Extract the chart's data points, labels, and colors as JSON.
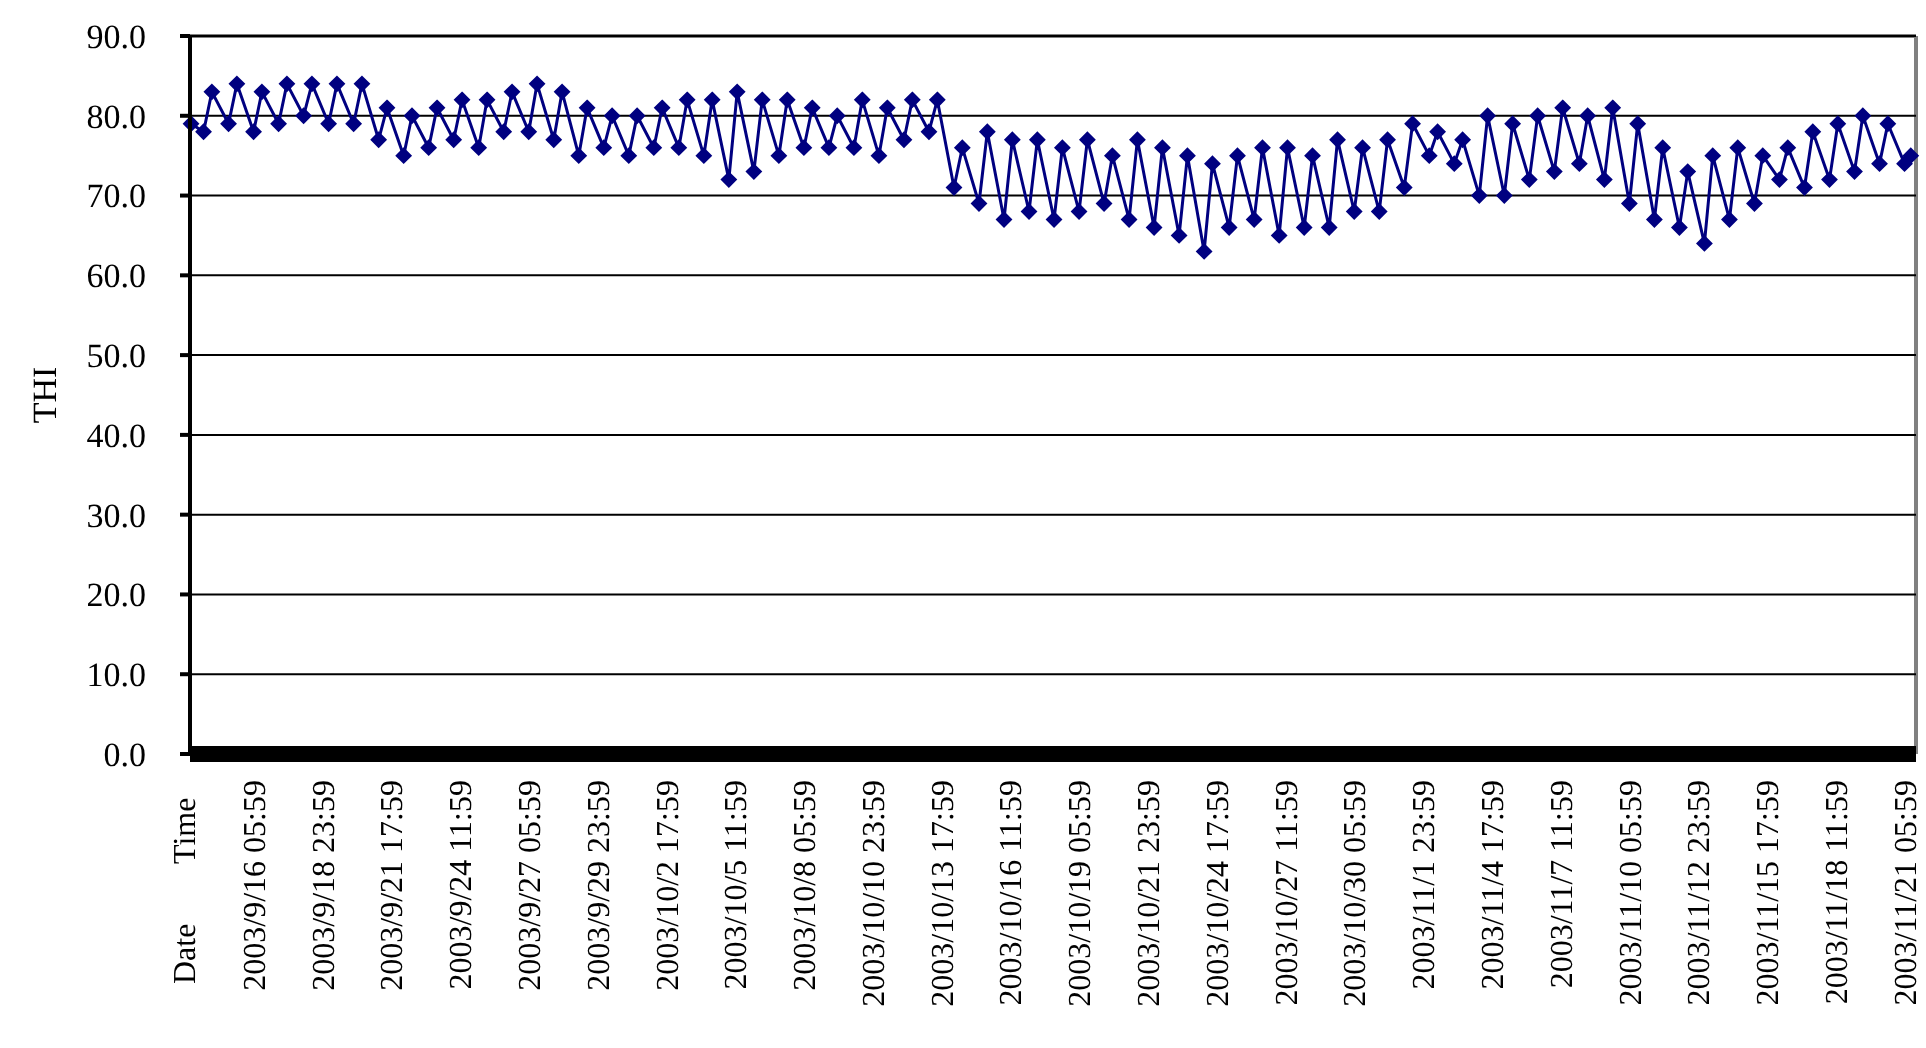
{
  "chart_data": {
    "type": "line",
    "ylabel": "THI",
    "marker": "diamond",
    "line_style": "solid",
    "grid": "y",
    "annotations": [
      "Time",
      "Date"
    ],
    "xlim": [
      "2003-09-13T17:00",
      "2003-11-21T17:00"
    ],
    "xticks": [
      {
        "value": "2003-09-16T05:59",
        "label": "2003/9/16 05:59"
      },
      {
        "value": "2003-09-18T23:59",
        "label": "2003/9/18 23:59"
      },
      {
        "value": "2003-09-21T17:59",
        "label": "2003/9/21 17:59"
      },
      {
        "value": "2003-09-24T11:59",
        "label": "2003/9/24 11:59"
      },
      {
        "value": "2003-09-27T05:59",
        "label": "2003/9/27 05:59"
      },
      {
        "value": "2003-09-29T23:59",
        "label": "2003/9/29 23:59"
      },
      {
        "value": "2003-10-02T17:59",
        "label": "2003/10/2 17:59"
      },
      {
        "value": "2003-10-05T11:59",
        "label": "2003/10/5 11:59"
      },
      {
        "value": "2003-10-08T05:59",
        "label": "2003/10/8 05:59"
      },
      {
        "value": "2003-10-10T23:59",
        "label": "2003/10/10 23:59"
      },
      {
        "value": "2003-10-13T17:59",
        "label": "2003/10/13 17:59"
      },
      {
        "value": "2003-10-16T11:59",
        "label": "2003/10/16 11:59"
      },
      {
        "value": "2003-10-19T05:59",
        "label": "2003/10/19 05:59"
      },
      {
        "value": "2003-10-21T23:59",
        "label": "2003/10/21 23:59"
      },
      {
        "value": "2003-10-24T17:59",
        "label": "2003/10/24 17:59"
      },
      {
        "value": "2003-10-27T11:59",
        "label": "2003/10/27 11:59"
      },
      {
        "value": "2003-10-30T05:59",
        "label": "2003/10/30 05:59"
      },
      {
        "value": "2003-11-01T23:59",
        "label": "2003/11/1 23:59"
      },
      {
        "value": "2003-11-04T17:59",
        "label": "2003/11/4 17:59"
      },
      {
        "value": "2003-11-07T11:59",
        "label": "2003/11/7 11:59"
      },
      {
        "value": "2003-11-10T05:59",
        "label": "2003/11/10 05:59"
      },
      {
        "value": "2003-11-12T23:59",
        "label": "2003/11/12 23:59"
      },
      {
        "value": "2003-11-15T17:59",
        "label": "2003/11/15 17:59"
      },
      {
        "value": "2003-11-18T11:59",
        "label": "2003/11/18 11:59"
      },
      {
        "value": "2003-11-21T05:59",
        "label": "2003/11/21 05:59"
      }
    ],
    "ylim": [
      0,
      90
    ],
    "yticks": [
      {
        "value": 0,
        "label": "0.0"
      },
      {
        "value": 10,
        "label": "10.0"
      },
      {
        "value": 20,
        "label": "20.0"
      },
      {
        "value": 30,
        "label": "30.0"
      },
      {
        "value": 40,
        "label": "40.0"
      },
      {
        "value": 50,
        "label": "50.0"
      },
      {
        "value": 60,
        "label": "60.0"
      },
      {
        "value": 70,
        "label": "70.0"
      },
      {
        "value": 80,
        "label": "80.0"
      },
      {
        "value": 90,
        "label": "90.0"
      }
    ],
    "x": [
      "2003-09-13T18:00",
      "2003-09-14T06:00",
      "2003-09-14T14:00",
      "2003-09-15T06:00",
      "2003-09-15T14:00",
      "2003-09-16T06:00",
      "2003-09-16T14:00",
      "2003-09-17T06:00",
      "2003-09-17T14:00",
      "2003-09-18T06:00",
      "2003-09-18T14:00",
      "2003-09-19T06:00",
      "2003-09-19T14:00",
      "2003-09-20T06:00",
      "2003-09-20T14:00",
      "2003-09-21T06:00",
      "2003-09-21T14:00",
      "2003-09-22T06:00",
      "2003-09-22T14:00",
      "2003-09-23T06:00",
      "2003-09-23T14:00",
      "2003-09-24T06:00",
      "2003-09-24T14:00",
      "2003-09-25T06:00",
      "2003-09-25T14:00",
      "2003-09-26T06:00",
      "2003-09-26T14:00",
      "2003-09-27T06:00",
      "2003-09-27T14:00",
      "2003-09-28T06:00",
      "2003-09-28T14:00",
      "2003-09-29T06:00",
      "2003-09-29T14:00",
      "2003-09-30T06:00",
      "2003-09-30T14:00",
      "2003-10-01T06:00",
      "2003-10-01T14:00",
      "2003-10-02T06:00",
      "2003-10-02T14:00",
      "2003-10-03T06:00",
      "2003-10-03T14:00",
      "2003-10-04T06:00",
      "2003-10-04T14:00",
      "2003-10-05T06:00",
      "2003-10-05T14:00",
      "2003-10-06T06:00",
      "2003-10-06T14:00",
      "2003-10-07T06:00",
      "2003-10-07T14:00",
      "2003-10-08T06:00",
      "2003-10-08T14:00",
      "2003-10-09T06:00",
      "2003-10-09T14:00",
      "2003-10-10T06:00",
      "2003-10-10T14:00",
      "2003-10-11T06:00",
      "2003-10-11T14:00",
      "2003-10-12T06:00",
      "2003-10-12T14:00",
      "2003-10-13T06:00",
      "2003-10-13T14:00",
      "2003-10-14T06:00",
      "2003-10-14T14:00",
      "2003-10-15T06:00",
      "2003-10-15T14:00",
      "2003-10-16T06:00",
      "2003-10-16T14:00",
      "2003-10-17T06:00",
      "2003-10-17T14:00",
      "2003-10-18T06:00",
      "2003-10-18T14:00",
      "2003-10-19T06:00",
      "2003-10-19T14:00",
      "2003-10-20T06:00",
      "2003-10-20T14:00",
      "2003-10-21T06:00",
      "2003-10-21T14:00",
      "2003-10-22T06:00",
      "2003-10-22T14:00",
      "2003-10-23T06:00",
      "2003-10-23T14:00",
      "2003-10-24T06:00",
      "2003-10-24T14:00",
      "2003-10-25T06:00",
      "2003-10-25T14:00",
      "2003-10-26T06:00",
      "2003-10-26T14:00",
      "2003-10-27T06:00",
      "2003-10-27T14:00",
      "2003-10-28T06:00",
      "2003-10-28T14:00",
      "2003-10-29T06:00",
      "2003-10-29T14:00",
      "2003-10-30T06:00",
      "2003-10-30T14:00",
      "2003-10-31T06:00",
      "2003-10-31T14:00",
      "2003-11-01T06:00",
      "2003-11-01T14:00",
      "2003-11-02T06:00",
      "2003-11-02T14:00",
      "2003-11-03T06:00",
      "2003-11-03T14:00",
      "2003-11-04T06:00",
      "2003-11-04T14:00",
      "2003-11-05T06:00",
      "2003-11-05T14:00",
      "2003-11-06T06:00",
      "2003-11-06T14:00",
      "2003-11-07T06:00",
      "2003-11-07T14:00",
      "2003-11-08T06:00",
      "2003-11-08T14:00",
      "2003-11-09T06:00",
      "2003-11-09T14:00",
      "2003-11-10T06:00",
      "2003-11-10T14:00",
      "2003-11-11T06:00",
      "2003-11-11T14:00",
      "2003-11-12T06:00",
      "2003-11-12T14:00",
      "2003-11-13T06:00",
      "2003-11-13T14:00",
      "2003-11-14T06:00",
      "2003-11-14T14:00",
      "2003-11-15T06:00",
      "2003-11-15T14:00",
      "2003-11-16T06:00",
      "2003-11-16T14:00",
      "2003-11-17T06:00",
      "2003-11-17T14:00",
      "2003-11-18T06:00",
      "2003-11-18T14:00",
      "2003-11-19T06:00",
      "2003-11-19T14:00",
      "2003-11-20T06:00",
      "2003-11-20T14:00",
      "2003-11-21T06:00",
      "2003-11-21T12:00"
    ],
    "series": [
      {
        "color": "#000080",
        "values": [
          79,
          78,
          83,
          79,
          84,
          78,
          83,
          79,
          84,
          80,
          84,
          79,
          84,
          79,
          84,
          77,
          81,
          75,
          80,
          76,
          81,
          77,
          82,
          76,
          82,
          78,
          83,
          78,
          84,
          77,
          83,
          75,
          81,
          76,
          80,
          75,
          80,
          76,
          81,
          76,
          82,
          75,
          82,
          72,
          83,
          73,
          82,
          75,
          82,
          76,
          81,
          76,
          80,
          76,
          82,
          75,
          81,
          77,
          82,
          78,
          82,
          71,
          76,
          69,
          78,
          67,
          77,
          68,
          77,
          67,
          76,
          68,
          77,
          69,
          75,
          67,
          77,
          66,
          76,
          65,
          75,
          63,
          74,
          66,
          75,
          67,
          76,
          65,
          76,
          66,
          75,
          66,
          77,
          68,
          76,
          68,
          77,
          71,
          79,
          75,
          78,
          74,
          77,
          70,
          80,
          70,
          79,
          72,
          80,
          73,
          81,
          74,
          80,
          72,
          81,
          69,
          79,
          67,
          76,
          66,
          73,
          64,
          75,
          67,
          76,
          69,
          75,
          72,
          76,
          71,
          78,
          72,
          79,
          73,
          80,
          74,
          79,
          74,
          75
        ]
      }
    ]
  }
}
